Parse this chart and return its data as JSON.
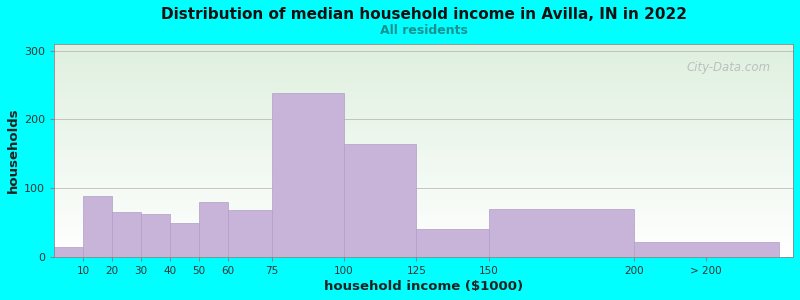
{
  "title": "Distribution of median household income in Avilla, IN in 2022",
  "subtitle": "All residents",
  "xlabel": "household income ($1000)",
  "ylabel": "households",
  "background_color": "#00FFFF",
  "bar_color": "#c8b4d8",
  "bar_edge_color": "#b09ec8",
  "categories": [
    "10",
    "20",
    "30",
    "40",
    "50",
    "60",
    "75",
    "100",
    "125",
    "150",
    "200",
    "> 200"
  ],
  "values": [
    15,
    88,
    65,
    62,
    50,
    80,
    68,
    238,
    165,
    40,
    70,
    22
  ],
  "bar_lefts": [
    0,
    10,
    20,
    30,
    40,
    50,
    60,
    75,
    100,
    125,
    150,
    200
  ],
  "bar_widths": [
    10,
    10,
    10,
    10,
    10,
    10,
    15,
    25,
    25,
    25,
    50,
    50
  ],
  "tick_positions": [
    10,
    20,
    30,
    40,
    50,
    60,
    75,
    100,
    125,
    150,
    200,
    225
  ],
  "tick_labels": [
    "10",
    "20",
    "30",
    "40",
    "50",
    "60",
    "75",
    "100",
    "125",
    "150",
    "200",
    "> 200"
  ],
  "xlim": [
    0,
    255
  ],
  "ylim": [
    0,
    310
  ],
  "yticks": [
    0,
    100,
    200,
    300
  ],
  "watermark": "City-Data.com"
}
